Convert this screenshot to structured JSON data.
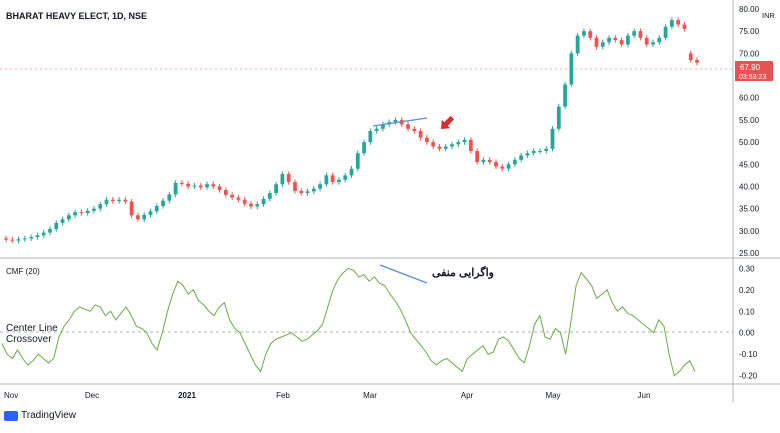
{
  "chart_title": "BHARAT HEAVY ELECT, 1D, NSE",
  "currency_badge": "INR",
  "price_label": {
    "value": "67.90",
    "countdown": "03:53:23",
    "color": "#e55353"
  },
  "price_axis_ticks": [
    "80.00",
    "75.00",
    "70.00",
    "65.00",
    "60.00",
    "55.00",
    "50.00",
    "45.00",
    "40.00",
    "35.00",
    "30.00",
    "25.00"
  ],
  "cmf_label": "CMF (20)",
  "cmf_axis_ticks": [
    "0.30",
    "0.20",
    "0.10",
    "0.00",
    "-0.10",
    "-0.20"
  ],
  "annotations": {
    "divergence_text": "واگرایی منفی",
    "center_line_text_1": "Center Line",
    "center_line_text_2": "Crossover"
  },
  "time_axis_ticks": [
    "Nov",
    "Dec",
    "2021",
    "Feb",
    "Mar",
    "Apr",
    "May",
    "Jun"
  ],
  "brand": "TradingView",
  "colors": {
    "up": "#26a69a",
    "down": "#ef5350",
    "cmf_line": "#6ea84a",
    "trend_line": "#5b8fd6",
    "arrow": "#d32f2f"
  },
  "chart_data": [
    {
      "type": "candlestick",
      "title": "BHARAT HEAVY ELECT, 1D, NSE",
      "ylim": [
        25,
        80
      ],
      "last_price": 67.9,
      "close": [
        28.0,
        27.8,
        28.1,
        28.3,
        28.6,
        29.0,
        29.6,
        30.4,
        31.8,
        32.6,
        33.5,
        34.2,
        34.0,
        34.5,
        35.0,
        36.0,
        37.0,
        36.7,
        37.0,
        36.6,
        33.5,
        32.6,
        33.6,
        34.4,
        35.6,
        36.8,
        38.2,
        40.8,
        40.6,
        40.0,
        40.2,
        39.8,
        40.5,
        40.0,
        39.2,
        38.1,
        37.5,
        37.0,
        36.1,
        35.5,
        36.0,
        37.2,
        38.5,
        40.5,
        42.8,
        41.0,
        39.0,
        38.5,
        38.9,
        39.5,
        40.5,
        42.5,
        41.0,
        41.5,
        42.5,
        44.0,
        47.5,
        50.0,
        52.5,
        53.0,
        54.0,
        54.5,
        55.0,
        54.0,
        53.0,
        52.5,
        51.0,
        50.0,
        49.0,
        48.5,
        49.0,
        49.5,
        50.0,
        50.5,
        48.0,
        45.5,
        46.0,
        45.5,
        44.5,
        44.0,
        45.0,
        46.0,
        47.0,
        47.5,
        48.0,
        48.0,
        48.5,
        53.0,
        58.0,
        63.0,
        70.0,
        74.0,
        75.0,
        73.5,
        71.5,
        72.5,
        73.5,
        73.0,
        72.0,
        74.0,
        75.0,
        73.5,
        72.0,
        72.5,
        73.5,
        76.0,
        77.5,
        76.5,
        75.5,
        68.5,
        67.9
      ],
      "open": [
        28.3,
        28.0,
        27.8,
        28.1,
        28.3,
        28.6,
        29.0,
        29.6,
        30.4,
        31.8,
        32.6,
        33.5,
        34.2,
        34.0,
        34.5,
        35.0,
        36.0,
        37.0,
        36.7,
        37.0,
        36.6,
        33.5,
        32.6,
        33.6,
        34.4,
        35.6,
        36.8,
        38.2,
        40.8,
        40.6,
        40.0,
        40.2,
        39.8,
        40.5,
        40.0,
        39.2,
        38.1,
        37.5,
        37.0,
        36.1,
        35.5,
        36.0,
        37.2,
        38.5,
        40.5,
        42.8,
        41.0,
        39.0,
        38.5,
        38.9,
        39.5,
        40.5,
        42.5,
        41.0,
        41.5,
        42.5,
        44.0,
        47.5,
        50.0,
        52.5,
        53.0,
        54.0,
        54.5,
        55.0,
        54.0,
        53.0,
        52.5,
        51.0,
        50.0,
        49.0,
        48.5,
        49.0,
        49.5,
        50.0,
        50.5,
        48.0,
        45.5,
        46.0,
        45.5,
        44.5,
        44.0,
        45.0,
        46.0,
        47.0,
        47.5,
        48.0,
        48.0,
        48.5,
        53.0,
        58.0,
        63.0,
        70.0,
        74.0,
        75.0,
        73.5,
        71.5,
        72.5,
        73.5,
        73.0,
        72.0,
        74.0,
        75.0,
        73.5,
        72.0,
        72.5,
        73.5,
        76.0,
        77.5,
        76.5,
        70.0,
        68.5
      ]
    },
    {
      "type": "line",
      "title": "CMF (20)",
      "ylim": [
        -0.22,
        0.32
      ],
      "reference_line": 0.0,
      "values": [
        -0.05,
        -0.1,
        -0.12,
        -0.08,
        -0.12,
        -0.15,
        -0.13,
        -0.1,
        -0.12,
        -0.14,
        -0.12,
        -0.02,
        0.03,
        0.06,
        0.1,
        0.12,
        0.11,
        0.1,
        0.13,
        0.12,
        0.08,
        0.1,
        0.06,
        0.09,
        0.12,
        0.08,
        0.03,
        0.02,
        0.0,
        -0.05,
        -0.08,
        0.0,
        0.1,
        0.18,
        0.24,
        0.22,
        0.18,
        0.2,
        0.15,
        0.13,
        0.1,
        0.08,
        0.12,
        0.14,
        0.06,
        0.02,
        0.0,
        -0.05,
        -0.1,
        -0.15,
        -0.18,
        -0.1,
        -0.05,
        -0.03,
        -0.02,
        -0.01,
        0.0,
        -0.02,
        -0.04,
        -0.03,
        -0.01,
        0.01,
        0.04,
        0.12,
        0.2,
        0.25,
        0.28,
        0.3,
        0.29,
        0.26,
        0.27,
        0.24,
        0.26,
        0.23,
        0.22,
        0.18,
        0.15,
        0.11,
        0.06,
        0.0,
        -0.03,
        -0.06,
        -0.09,
        -0.13,
        -0.15,
        -0.13,
        -0.12,
        -0.14,
        -0.16,
        -0.18,
        -0.12,
        -0.1,
        -0.08,
        -0.06,
        -0.1,
        -0.09,
        -0.03,
        -0.02,
        -0.04,
        -0.08,
        -0.12,
        -0.14,
        -0.06,
        0.04,
        0.08,
        -0.02,
        -0.03,
        0.02,
        0.0,
        -0.1,
        0.05,
        0.22,
        0.28,
        0.25,
        0.22,
        0.16,
        0.18,
        0.2,
        0.14,
        0.1,
        0.12,
        0.09,
        0.08,
        0.06,
        0.04,
        0.02,
        0.0,
        0.06,
        0.03,
        -0.1,
        -0.2,
        -0.18,
        -0.15,
        -0.13,
        -0.18
      ]
    }
  ]
}
